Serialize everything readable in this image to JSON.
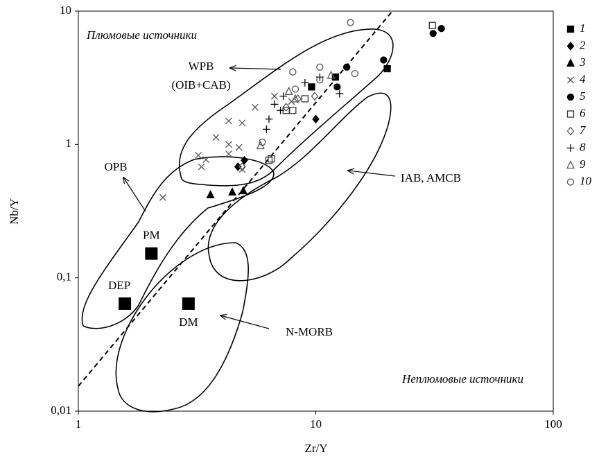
{
  "chart_data": {
    "type": "scatter",
    "x_label": "Zr/Y",
    "y_label": "Nb/Y",
    "xscale": "log",
    "yscale": "log",
    "xlim": [
      1,
      100
    ],
    "ylim": [
      0.01,
      10
    ],
    "xticks": [
      1,
      10,
      100
    ],
    "yticks": [
      {
        "value": 0.01,
        "label": "0,01"
      },
      {
        "value": 0.1,
        "label": "0,1"
      },
      1,
      10
    ],
    "legend": "right",
    "annotations": [
      "Плюмовые источники",
      "WPB",
      "(OIB+CAB)",
      "OPB",
      "IAB, AMCB",
      "N-MORB",
      "Неплюмовые источники"
    ],
    "reference_points": {
      "labels": [
        "PM",
        "DEP",
        "DM"
      ],
      "x": [
        2.03,
        1.57,
        2.91
      ],
      "y": [
        0.152,
        0.064,
        0.064
      ],
      "color": "#000000"
    },
    "series": [
      {
        "name": "1",
        "marker": "square",
        "filled": true,
        "color": "#000000",
        "x": [
          9.6,
          12.1,
          20
        ],
        "y": [
          2.7,
          3.2,
          3.7
        ]
      },
      {
        "name": "2",
        "marker": "diamond",
        "filled": true,
        "color": "#000000",
        "x": [
          10.0,
          5.0,
          4.7
        ],
        "y": [
          1.55,
          0.76,
          0.68
        ]
      },
      {
        "name": "3",
        "marker": "triangle",
        "filled": true,
        "color": "#000000",
        "x": [
          3.6,
          4.45,
          4.95
        ],
        "y": [
          0.42,
          0.44,
          0.45
        ]
      },
      {
        "name": "4",
        "marker": "cross",
        "filled": false,
        "color": "#555555",
        "x": [
          2.27,
          3.2,
          3.3,
          3.45,
          3.8,
          4.3,
          4.9,
          4.3,
          4.75,
          4.3,
          4.9,
          5.55,
          6.7,
          7.9
        ],
        "y": [
          0.4,
          0.83,
          0.68,
          0.77,
          1.13,
          1.5,
          1.45,
          1.0,
          0.95,
          0.85,
          0.65,
          1.9,
          2.3,
          2.1
        ]
      },
      {
        "name": "5",
        "marker": "circle",
        "filled": true,
        "color": "#000000",
        "x": [
          12.3,
          13.5,
          19.3,
          31.2,
          33.8
        ],
        "y": [
          2.7,
          3.8,
          4.3,
          6.8,
          7.4
        ]
      },
      {
        "name": "6",
        "marker": "square",
        "filled": false,
        "color": "#333333",
        "x": [
          6.35,
          6.5,
          7.5,
          8.0,
          9.0,
          31
        ],
        "y": [
          0.76,
          0.78,
          1.8,
          1.8,
          2.2,
          7.8
        ]
      },
      {
        "name": "7",
        "marker": "diamond",
        "filled": false,
        "color": "#555555",
        "x": [
          7.5,
          8.4,
          9.9,
          4.9
        ],
        "y": [
          1.9,
          2.2,
          2.3,
          0.68
        ]
      },
      {
        "name": "8",
        "marker": "plus",
        "filled": false,
        "color": "#000000",
        "x": [
          6.2,
          6.35,
          6.7,
          7.1,
          9.0,
          10.4,
          12.6,
          7.3
        ],
        "y": [
          1.3,
          1.55,
          2.0,
          1.8,
          2.9,
          3.2,
          2.4,
          2.3
        ]
      },
      {
        "name": "9",
        "marker": "triangle",
        "filled": false,
        "color": "#555555",
        "x": [
          5.85,
          7.7,
          11.6,
          8.2
        ],
        "y": [
          0.98,
          2.5,
          3.3,
          2.2
        ]
      },
      {
        "name": "10",
        "marker": "circle",
        "filled": false,
        "color": "#555555",
        "x": [
          5.95,
          8.0,
          14.0,
          10.4,
          14.6,
          8.2,
          10.4
        ],
        "y": [
          1.04,
          3.5,
          8.2,
          3.8,
          3.4,
          2.6,
          3.05
        ]
      }
    ]
  }
}
